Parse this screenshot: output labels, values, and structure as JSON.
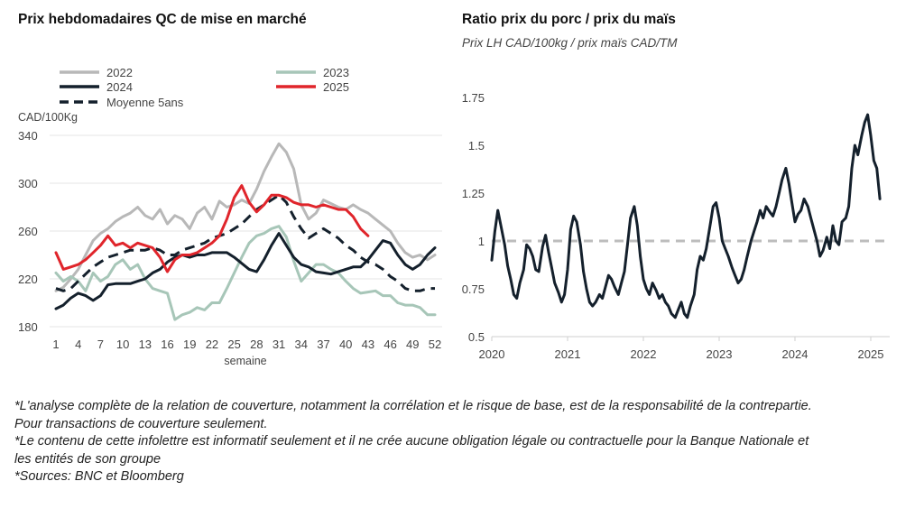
{
  "left_chart": {
    "title": "Prix hebdomadaires QC de mise en marché",
    "unit_label": "CAD/100Kg",
    "xlabel": "semaine"
  },
  "right_chart": {
    "title": "Ratio prix du porc / prix du maïs",
    "subtitle": "Prix LH CAD/100kg / prix maïs CAD/TM"
  },
  "colors": {
    "2022": "#b8b8b8",
    "2023": "#a7c6b8",
    "2024": "#14202c",
    "2025": "#e0252b",
    "moyenne": "#14202c",
    "ratio": "#14202c",
    "reference": "#bdbdbd",
    "grid": "#e6e6e6"
  },
  "chart_data": [
    {
      "type": "line",
      "title": "Prix hebdomadaires QC de mise en marché",
      "ylabel": "CAD/100Kg",
      "xlabel": "semaine",
      "ylim": [
        180,
        340
      ],
      "xlim": [
        1,
        52
      ],
      "yticks": [
        180,
        220,
        260,
        300,
        340
      ],
      "xticks": [
        1,
        4,
        7,
        10,
        13,
        16,
        19,
        22,
        25,
        28,
        31,
        34,
        37,
        40,
        43,
        46,
        49,
        52
      ],
      "grid": "horizontal",
      "legend": "top",
      "series": [
        {
          "name": "2022",
          "style": "solid",
          "x": [
            1,
            2,
            3,
            4,
            5,
            6,
            7,
            8,
            9,
            10,
            11,
            12,
            13,
            14,
            15,
            16,
            17,
            18,
            19,
            20,
            21,
            22,
            23,
            24,
            25,
            26,
            27,
            28,
            29,
            30,
            31,
            32,
            33,
            34,
            35,
            36,
            37,
            38,
            39,
            40,
            41,
            42,
            43,
            44,
            45,
            46,
            47,
            48,
            49,
            50,
            51,
            52
          ],
          "values": [
            210,
            213,
            220,
            228,
            240,
            252,
            258,
            262,
            268,
            272,
            275,
            280,
            273,
            270,
            278,
            266,
            273,
            270,
            262,
            275,
            280,
            270,
            285,
            280,
            282,
            286,
            283,
            295,
            310,
            322,
            333,
            326,
            312,
            282,
            270,
            275,
            286,
            283,
            280,
            278,
            282,
            278,
            275,
            270,
            265,
            260,
            250,
            242,
            238,
            240,
            236,
            240
          ]
        },
        {
          "name": "2023",
          "style": "solid",
          "x": [
            1,
            2,
            3,
            4,
            5,
            6,
            7,
            8,
            9,
            10,
            11,
            12,
            13,
            14,
            15,
            16,
            17,
            18,
            19,
            20,
            21,
            22,
            23,
            24,
            25,
            26,
            27,
            28,
            29,
            30,
            31,
            32,
            33,
            34,
            35,
            36,
            37,
            38,
            39,
            40,
            41,
            42,
            43,
            44,
            45,
            46,
            47,
            48,
            49,
            50,
            51,
            52
          ],
          "values": [
            225,
            218,
            222,
            218,
            210,
            225,
            218,
            222,
            232,
            236,
            228,
            232,
            220,
            212,
            210,
            208,
            186,
            190,
            192,
            196,
            194,
            200,
            200,
            212,
            225,
            238,
            250,
            256,
            258,
            262,
            264,
            255,
            235,
            218,
            225,
            232,
            232,
            228,
            225,
            218,
            212,
            208,
            209,
            210,
            206,
            206,
            200,
            198,
            198,
            196,
            190,
            190
          ]
        },
        {
          "name": "2024",
          "style": "solid",
          "x": [
            1,
            2,
            3,
            4,
            5,
            6,
            7,
            8,
            9,
            10,
            11,
            12,
            13,
            14,
            15,
            16,
            17,
            18,
            19,
            20,
            21,
            22,
            23,
            24,
            25,
            26,
            27,
            28,
            29,
            30,
            31,
            32,
            33,
            34,
            35,
            36,
            37,
            38,
            39,
            40,
            41,
            42,
            43,
            44,
            45,
            46,
            47,
            48,
            49,
            50,
            51,
            52
          ],
          "values": [
            195,
            198,
            204,
            208,
            206,
            202,
            206,
            215,
            216,
            216,
            216,
            218,
            220,
            225,
            228,
            234,
            238,
            240,
            238,
            240,
            240,
            242,
            242,
            242,
            238,
            233,
            228,
            226,
            236,
            248,
            258,
            248,
            238,
            232,
            230,
            226,
            225,
            224,
            226,
            228,
            230,
            230,
            236,
            244,
            252,
            250,
            240,
            232,
            228,
            232,
            240,
            246
          ]
        },
        {
          "name": "2025",
          "style": "solid",
          "x": [
            1,
            2,
            3,
            4,
            5,
            6,
            7,
            8,
            9,
            10,
            11,
            12,
            13,
            14,
            15,
            16,
            17,
            18,
            19,
            20,
            21,
            22,
            23,
            24,
            25,
            26,
            27,
            28,
            29,
            30,
            31,
            32,
            33,
            34,
            35,
            36,
            37,
            38,
            39,
            40,
            41,
            42,
            43
          ],
          "values": [
            242,
            228,
            230,
            232,
            236,
            242,
            248,
            256,
            248,
            250,
            246,
            250,
            248,
            246,
            238,
            226,
            236,
            240,
            240,
            242,
            246,
            250,
            256,
            270,
            288,
            298,
            284,
            276,
            282,
            290,
            290,
            288,
            284,
            282,
            282,
            280,
            282,
            280,
            278,
            278,
            272,
            262,
            256
          ]
        },
        {
          "name": "Moyenne 5ans",
          "style": "dashed",
          "x": [
            1,
            2,
            3,
            4,
            5,
            6,
            7,
            8,
            9,
            10,
            11,
            12,
            13,
            14,
            15,
            16,
            17,
            18,
            19,
            20,
            21,
            22,
            23,
            24,
            25,
            26,
            27,
            28,
            29,
            30,
            31,
            32,
            33,
            34,
            35,
            36,
            37,
            38,
            39,
            40,
            41,
            42,
            43,
            44,
            45,
            46,
            47,
            48,
            49,
            50,
            51,
            52
          ],
          "values": [
            212,
            210,
            212,
            218,
            224,
            230,
            234,
            238,
            240,
            242,
            244,
            244,
            244,
            246,
            244,
            240,
            240,
            244,
            246,
            248,
            250,
            254,
            256,
            258,
            262,
            266,
            272,
            278,
            282,
            286,
            290,
            284,
            272,
            262,
            254,
            258,
            262,
            258,
            254,
            248,
            244,
            238,
            234,
            232,
            228,
            222,
            218,
            212,
            210,
            210,
            212,
            212
          ]
        }
      ]
    },
    {
      "type": "line",
      "title": "Ratio prix du porc / prix du maïs",
      "subtitle": "Prix LH CAD/100kg / prix maïs CAD/TM",
      "ylim": [
        0.5,
        1.75
      ],
      "yticks": [
        0.5,
        0.75,
        1,
        1.25,
        1.5,
        1.75
      ],
      "ytick_labels": [
        "0.5",
        "0.75",
        "1",
        "1.25",
        "1.5",
        "1.75"
      ],
      "xlim": [
        2020.0,
        2025.25
      ],
      "xticks": [
        2020,
        2021,
        2022,
        2023,
        2024,
        2025
      ],
      "xtick_labels": [
        "2020",
        "2021",
        "2022",
        "2023",
        "2024",
        "2025"
      ],
      "grid": "none",
      "reference_line": {
        "y": 1,
        "style": "dashed"
      },
      "series": [
        {
          "name": "",
          "x": [
            2020.0,
            2020.04,
            2020.08,
            2020.12,
            2020.17,
            2020.21,
            2020.25,
            2020.29,
            2020.33,
            2020.37,
            2020.42,
            2020.46,
            2020.5,
            2020.54,
            2020.58,
            2020.62,
            2020.67,
            2020.71,
            2020.75,
            2020.79,
            2020.83,
            2020.88,
            2020.92,
            2020.96,
            2021.0,
            2021.04,
            2021.08,
            2021.12,
            2021.17,
            2021.21,
            2021.25,
            2021.29,
            2021.33,
            2021.37,
            2021.42,
            2021.46,
            2021.5,
            2021.54,
            2021.58,
            2021.62,
            2021.67,
            2021.71,
            2021.75,
            2021.79,
            2021.83,
            2021.88,
            2021.92,
            2021.96,
            2022.0,
            2022.04,
            2022.08,
            2022.12,
            2022.17,
            2022.21,
            2022.25,
            2022.29,
            2022.33,
            2022.37,
            2022.42,
            2022.46,
            2022.5,
            2022.54,
            2022.58,
            2022.62,
            2022.67,
            2022.71,
            2022.75,
            2022.79,
            2022.83,
            2022.88,
            2022.92,
            2022.96,
            2023.0,
            2023.04,
            2023.08,
            2023.12,
            2023.17,
            2023.21,
            2023.25,
            2023.29,
            2023.33,
            2023.37,
            2023.42,
            2023.46,
            2023.5,
            2023.54,
            2023.58,
            2023.62,
            2023.67,
            2023.71,
            2023.75,
            2023.79,
            2023.83,
            2023.88,
            2023.92,
            2023.96,
            2024.0,
            2024.04,
            2024.08,
            2024.12,
            2024.17,
            2024.21,
            2024.25,
            2024.29,
            2024.33,
            2024.37,
            2024.42,
            2024.46,
            2024.5,
            2024.54,
            2024.58,
            2024.62,
            2024.67,
            2024.71,
            2024.75,
            2024.79,
            2024.83,
            2024.88,
            2024.92,
            2024.96,
            2025.0,
            2025.04,
            2025.08,
            2025.12
          ],
          "values": [
            0.9,
            1.05,
            1.16,
            1.08,
            0.98,
            0.87,
            0.8,
            0.72,
            0.7,
            0.78,
            0.85,
            0.98,
            0.96,
            0.92,
            0.85,
            0.84,
            0.97,
            1.03,
            0.94,
            0.86,
            0.78,
            0.73,
            0.68,
            0.72,
            0.85,
            1.06,
            1.13,
            1.1,
            0.98,
            0.84,
            0.75,
            0.68,
            0.66,
            0.68,
            0.72,
            0.7,
            0.76,
            0.82,
            0.8,
            0.76,
            0.72,
            0.78,
            0.84,
            0.98,
            1.12,
            1.18,
            1.08,
            0.92,
            0.8,
            0.75,
            0.72,
            0.78,
            0.74,
            0.7,
            0.72,
            0.68,
            0.66,
            0.62,
            0.6,
            0.64,
            0.68,
            0.62,
            0.6,
            0.66,
            0.72,
            0.85,
            0.92,
            0.9,
            0.96,
            1.08,
            1.18,
            1.2,
            1.12,
            1.0,
            0.96,
            0.92,
            0.86,
            0.82,
            0.78,
            0.8,
            0.85,
            0.92,
            1.0,
            1.05,
            1.1,
            1.16,
            1.12,
            1.18,
            1.15,
            1.13,
            1.18,
            1.25,
            1.32,
            1.38,
            1.3,
            1.2,
            1.1,
            1.14,
            1.16,
            1.22,
            1.18,
            1.12,
            1.06,
            1.0,
            0.92,
            0.95,
            1.02,
            0.96,
            1.08,
            1.0,
            0.98,
            1.1,
            1.12,
            1.18,
            1.38,
            1.5,
            1.45,
            1.55,
            1.62,
            1.66,
            1.55,
            1.42,
            1.38,
            1.22
          ]
        }
      ]
    }
  ],
  "notes": [
    "*L'analyse complète de la relation de couverture, notamment la corrélation et le risque de base, est de la responsabilité de la contrepartie. Pour transactions de couverture seulement.",
    "*Le contenu de cette infolettre est informatif seulement et il ne crée aucune obligation légale ou contractuelle pour la Banque Nationale et les entités de son groupe",
    "*Sources: BNC et Bloomberg"
  ]
}
